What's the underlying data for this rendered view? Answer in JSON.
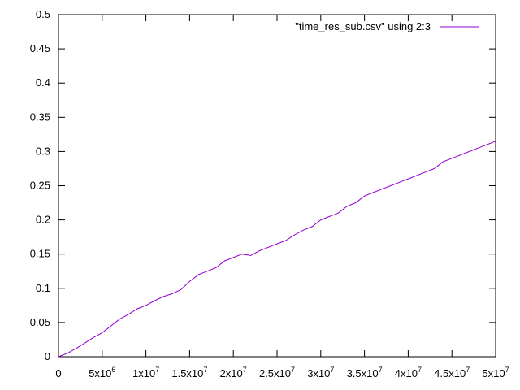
{
  "chart_data": {
    "type": "line",
    "legend": "\"time_res_sub.csv\" using 2:3",
    "legend_position": "top-right",
    "line_color": "#9400d3",
    "grid": false,
    "xlim": [
      0,
      50000000
    ],
    "ylim": [
      0,
      0.5
    ],
    "x_ticks": [
      {
        "value": 0,
        "base": "0",
        "sup": ""
      },
      {
        "value": 5000000,
        "base": "5x10",
        "sup": "6"
      },
      {
        "value": 10000000,
        "base": "1x10",
        "sup": "7"
      },
      {
        "value": 15000000,
        "base": "1.5x10",
        "sup": "7"
      },
      {
        "value": 20000000,
        "base": "2x10",
        "sup": "7"
      },
      {
        "value": 25000000,
        "base": "2.5x10",
        "sup": "7"
      },
      {
        "value": 30000000,
        "base": "3x10",
        "sup": "7"
      },
      {
        "value": 35000000,
        "base": "3.5x10",
        "sup": "7"
      },
      {
        "value": 40000000,
        "base": "4x10",
        "sup": "7"
      },
      {
        "value": 45000000,
        "base": "4.5x10",
        "sup": "7"
      },
      {
        "value": 50000000,
        "base": "5x10",
        "sup": "7"
      }
    ],
    "y_ticks": [
      {
        "value": 0,
        "label": "0"
      },
      {
        "value": 0.05,
        "label": "0.05"
      },
      {
        "value": 0.1,
        "label": "0.1"
      },
      {
        "value": 0.15,
        "label": "0.15"
      },
      {
        "value": 0.2,
        "label": "0.2"
      },
      {
        "value": 0.25,
        "label": "0.25"
      },
      {
        "value": 0.3,
        "label": "0.3"
      },
      {
        "value": 0.35,
        "label": "0.35"
      },
      {
        "value": 0.4,
        "label": "0.4"
      },
      {
        "value": 0.45,
        "label": "0.45"
      },
      {
        "value": 0.5,
        "label": "0.5"
      }
    ],
    "series": [
      {
        "x": [
          0,
          1000000,
          2000000,
          3000000,
          4000000,
          5000000,
          6000000,
          7000000,
          8000000,
          9000000,
          10000000,
          11000000,
          12000000,
          13000000,
          14000000,
          15000000,
          16000000,
          17000000,
          18000000,
          19000000,
          20000000,
          21000000,
          22000000,
          23000000,
          24000000,
          25000000,
          26000000,
          27000000,
          28000000,
          29000000,
          30000000,
          31000000,
          32000000,
          33000000,
          34000000,
          35000000,
          36000000,
          37000000,
          38000000,
          39000000,
          40000000,
          41000000,
          42000000,
          43000000,
          44000000,
          45000000,
          46000000,
          47000000,
          48000000,
          49000000,
          50000000
        ],
        "y": [
          0.0,
          0.005,
          0.012,
          0.02,
          0.028,
          0.035,
          0.045,
          0.055,
          0.062,
          0.07,
          0.075,
          0.082,
          0.088,
          0.092,
          0.098,
          0.11,
          0.12,
          0.125,
          0.13,
          0.14,
          0.145,
          0.15,
          0.148,
          0.155,
          0.16,
          0.165,
          0.17,
          0.178,
          0.185,
          0.19,
          0.2,
          0.205,
          0.21,
          0.22,
          0.225,
          0.235,
          0.24,
          0.245,
          0.25,
          0.255,
          0.26,
          0.265,
          0.27,
          0.275,
          0.285,
          0.29,
          0.295,
          0.3,
          0.305,
          0.31,
          0.315
        ]
      }
    ]
  }
}
